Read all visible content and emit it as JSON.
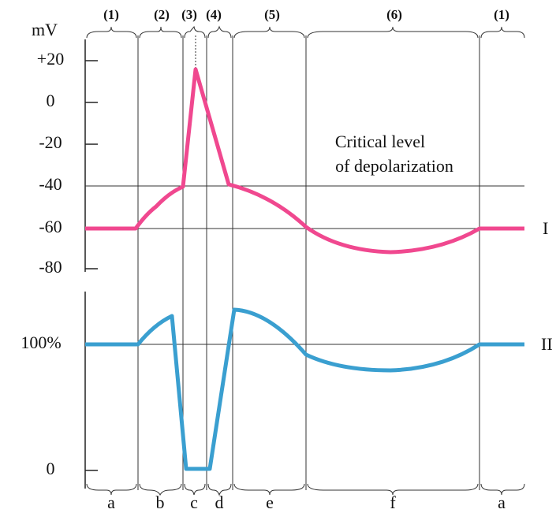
{
  "units": "mV",
  "mv_ticks": [
    "+20",
    "0",
    "-20",
    "-40",
    "-60",
    "-80"
  ],
  "percent_ticks": [
    "100%",
    "0"
  ],
  "phases_top": [
    "(1)",
    "(2)",
    "(3)",
    "(4)",
    "(5)",
    "(6)",
    "(1)"
  ],
  "phases_bottom": [
    "a",
    "b",
    "c",
    "d",
    "e",
    "f",
    "a"
  ],
  "annotation": [
    "Critical level",
    "of depolarization"
  ],
  "curve_labels": [
    "I",
    "II"
  ]
}
